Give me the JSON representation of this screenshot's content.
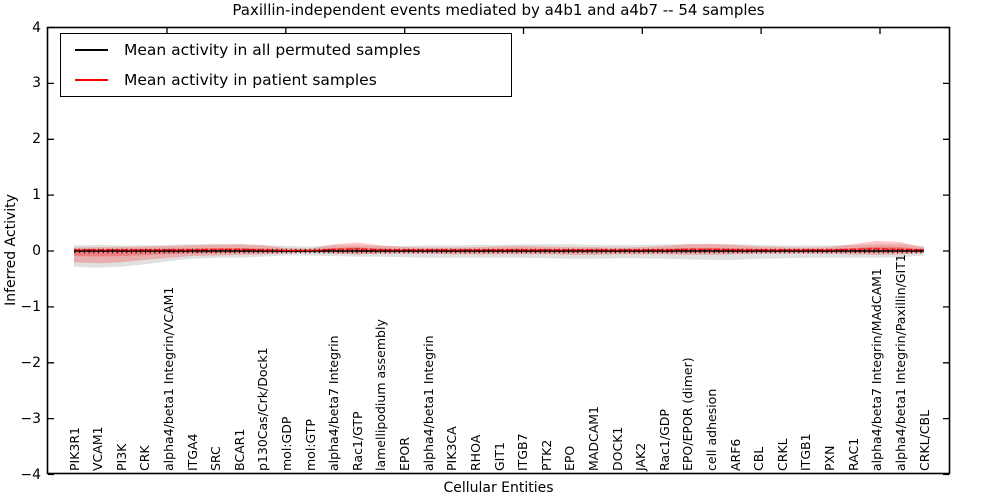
{
  "chart_data": {
    "type": "line",
    "title": "Paxillin-independent events mediated by a4b1 and a4b7 -- 54 samples",
    "xlabel": "Cellular Entities",
    "ylabel": "Inferred Activity",
    "ylim": [
      -4,
      4
    ],
    "yticks": [
      4,
      3,
      2,
      1,
      0,
      -1,
      -2,
      -3,
      -4
    ],
    "grid": false,
    "legend_position": "upper left",
    "categories": [
      "PIK3R1",
      "VCAM1",
      "PI3K",
      "CRK",
      "alpha4/beta1 Integrin/VCAM1",
      "ITGA4",
      "SRC",
      "BCAR1",
      "p130Cas/Crk/Dock1",
      "mol:GDP",
      "mol:GTP",
      "alpha4/beta7 Integrin",
      "Rac1/GTP",
      "lamellipodium assembly",
      "EPOR",
      "alpha4/beta1 Integrin",
      "PIK3CA",
      "RHOA",
      "GIT1",
      "ITGB7",
      "PTK2",
      "EPO",
      "MADCAM1",
      "DOCK1",
      "JAK2",
      "Rac1/GDP",
      "EPO/EPOR (dimer)",
      "cell adhesion",
      "ARF6",
      "CBL",
      "CRKL",
      "ITGB1",
      "PXN",
      "RAC1",
      "alpha4/beta7 Integrin/MAdCAM1",
      "alpha4/beta1 Integrin/Paxillin/GIT1",
      "CRKL/CBL"
    ],
    "series": [
      {
        "name": "Mean activity in all permuted samples",
        "color": "#000000",
        "values": [
          0,
          0,
          0,
          0,
          0,
          0,
          0,
          0,
          0,
          0,
          0,
          0,
          0,
          0,
          0,
          0,
          0,
          0,
          0,
          0,
          0,
          0,
          0,
          0,
          0,
          0,
          0,
          0,
          0,
          0,
          0,
          0,
          0,
          0,
          0,
          0,
          0
        ]
      },
      {
        "name": "Mean activity in patient samples",
        "color": "#ff0000",
        "values": [
          0.02,
          0.02,
          0.02,
          0.02,
          0.02,
          0.02,
          0.03,
          0.03,
          0.02,
          0.01,
          0.01,
          0.03,
          0.04,
          0.02,
          0.02,
          0.02,
          0.02,
          0.02,
          0.02,
          0.02,
          0.02,
          0.02,
          0.02,
          0.02,
          0.02,
          0.02,
          0.03,
          0.03,
          0.02,
          0.02,
          0.02,
          0.02,
          0.02,
          0.03,
          0.04,
          0.03,
          0.02
        ]
      }
    ],
    "bands": [
      {
        "name": "permuted samples range",
        "color": "#9e9e9e",
        "opacity": 0.32,
        "hi": [
          0.1,
          0.11,
          0.1,
          0.1,
          0.11,
          0.12,
          0.13,
          0.12,
          0.11,
          0.09,
          0.08,
          0.1,
          0.1,
          0.09,
          0.09,
          0.1,
          0.1,
          0.11,
          0.11,
          0.12,
          0.12,
          0.12,
          0.11,
          0.11,
          0.11,
          0.12,
          0.12,
          0.12,
          0.12,
          0.11,
          0.1,
          0.1,
          0.1,
          0.11,
          0.12,
          0.12,
          0.09
        ],
        "lo": [
          -0.28,
          -0.3,
          -0.28,
          -0.24,
          -0.18,
          -0.14,
          -0.12,
          -0.12,
          -0.1,
          -0.08,
          -0.08,
          -0.09,
          -0.1,
          -0.1,
          -0.11,
          -0.12,
          -0.12,
          -0.12,
          -0.12,
          -0.12,
          -0.13,
          -0.14,
          -0.14,
          -0.13,
          -0.13,
          -0.14,
          -0.15,
          -0.16,
          -0.16,
          -0.14,
          -0.13,
          -0.12,
          -0.12,
          -0.12,
          -0.12,
          -0.11,
          -0.08
        ]
      },
      {
        "name": "patient samples range",
        "color": "#ff2a2a",
        "opacity": 0.28,
        "hi": [
          0.06,
          0.07,
          0.07,
          0.08,
          0.09,
          0.1,
          0.11,
          0.12,
          0.1,
          0.05,
          0.04,
          0.12,
          0.15,
          0.1,
          0.07,
          0.06,
          0.06,
          0.07,
          0.08,
          0.09,
          0.08,
          0.07,
          0.07,
          0.06,
          0.07,
          0.09,
          0.12,
          0.13,
          0.11,
          0.08,
          0.07,
          0.06,
          0.07,
          0.12,
          0.18,
          0.16,
          0.06
        ],
        "lo": [
          -0.2,
          -0.22,
          -0.2,
          -0.16,
          -0.12,
          -0.09,
          -0.08,
          -0.07,
          -0.06,
          -0.04,
          -0.03,
          -0.05,
          -0.06,
          -0.05,
          -0.05,
          -0.05,
          -0.06,
          -0.06,
          -0.06,
          -0.06,
          -0.06,
          -0.07,
          -0.07,
          -0.06,
          -0.06,
          -0.06,
          -0.07,
          -0.07,
          -0.06,
          -0.05,
          -0.05,
          -0.05,
          -0.05,
          -0.06,
          -0.07,
          -0.06,
          -0.04
        ]
      }
    ]
  }
}
